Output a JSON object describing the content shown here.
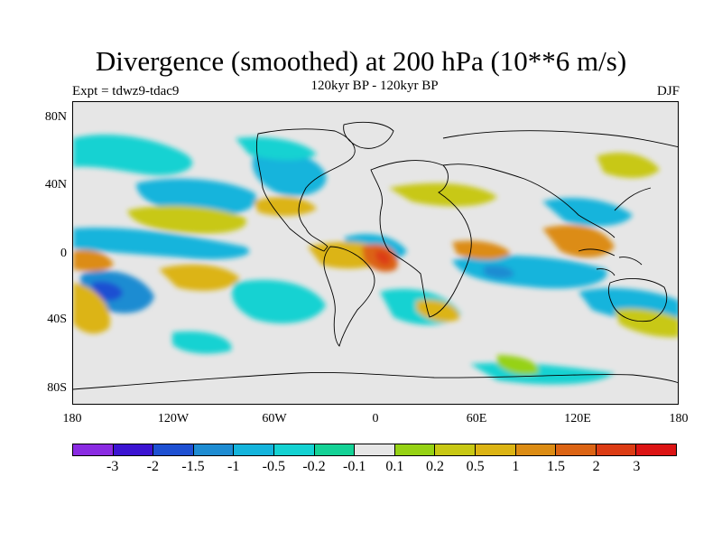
{
  "header": {
    "title": "Divergence (smoothed) at 200 hPa (10**6 m/s)",
    "subtitle": "120kyr BP - 120kyr BP",
    "experiment": "Expt = tdwz9-tdac9",
    "season": "DJF"
  },
  "map": {
    "projection": "cylindrical equidistant",
    "lon_range": [
      -180,
      180
    ],
    "lat_range": [
      -90,
      90
    ],
    "field": "200 hPa divergence anomaly (smoothed)",
    "background_color": "#e6e6e6",
    "coastline_color": "#000000",
    "lat_labels": [
      "80N",
      "40N",
      "0",
      "40S",
      "80S"
    ],
    "lon_labels": [
      "180",
      "120W",
      "60W",
      "0",
      "60E",
      "120E",
      "180"
    ]
  },
  "legend": {
    "colors": [
      "#8a2be2",
      "#3c14d2",
      "#1e50d2",
      "#1e8cd2",
      "#14b4dc",
      "#14d2d2",
      "#14d296",
      "#e6e6e6",
      "#96d214",
      "#c8c814",
      "#dcb414",
      "#dc8c14",
      "#dc6414",
      "#dc3c14",
      "#dc1414"
    ],
    "labels": [
      "-3",
      "-2",
      "-1.5",
      "-1",
      "-0.5",
      "-0.2",
      "-0.1",
      "0.1",
      "0.2",
      "0.5",
      "1",
      "1.5",
      "2",
      "3"
    ]
  }
}
